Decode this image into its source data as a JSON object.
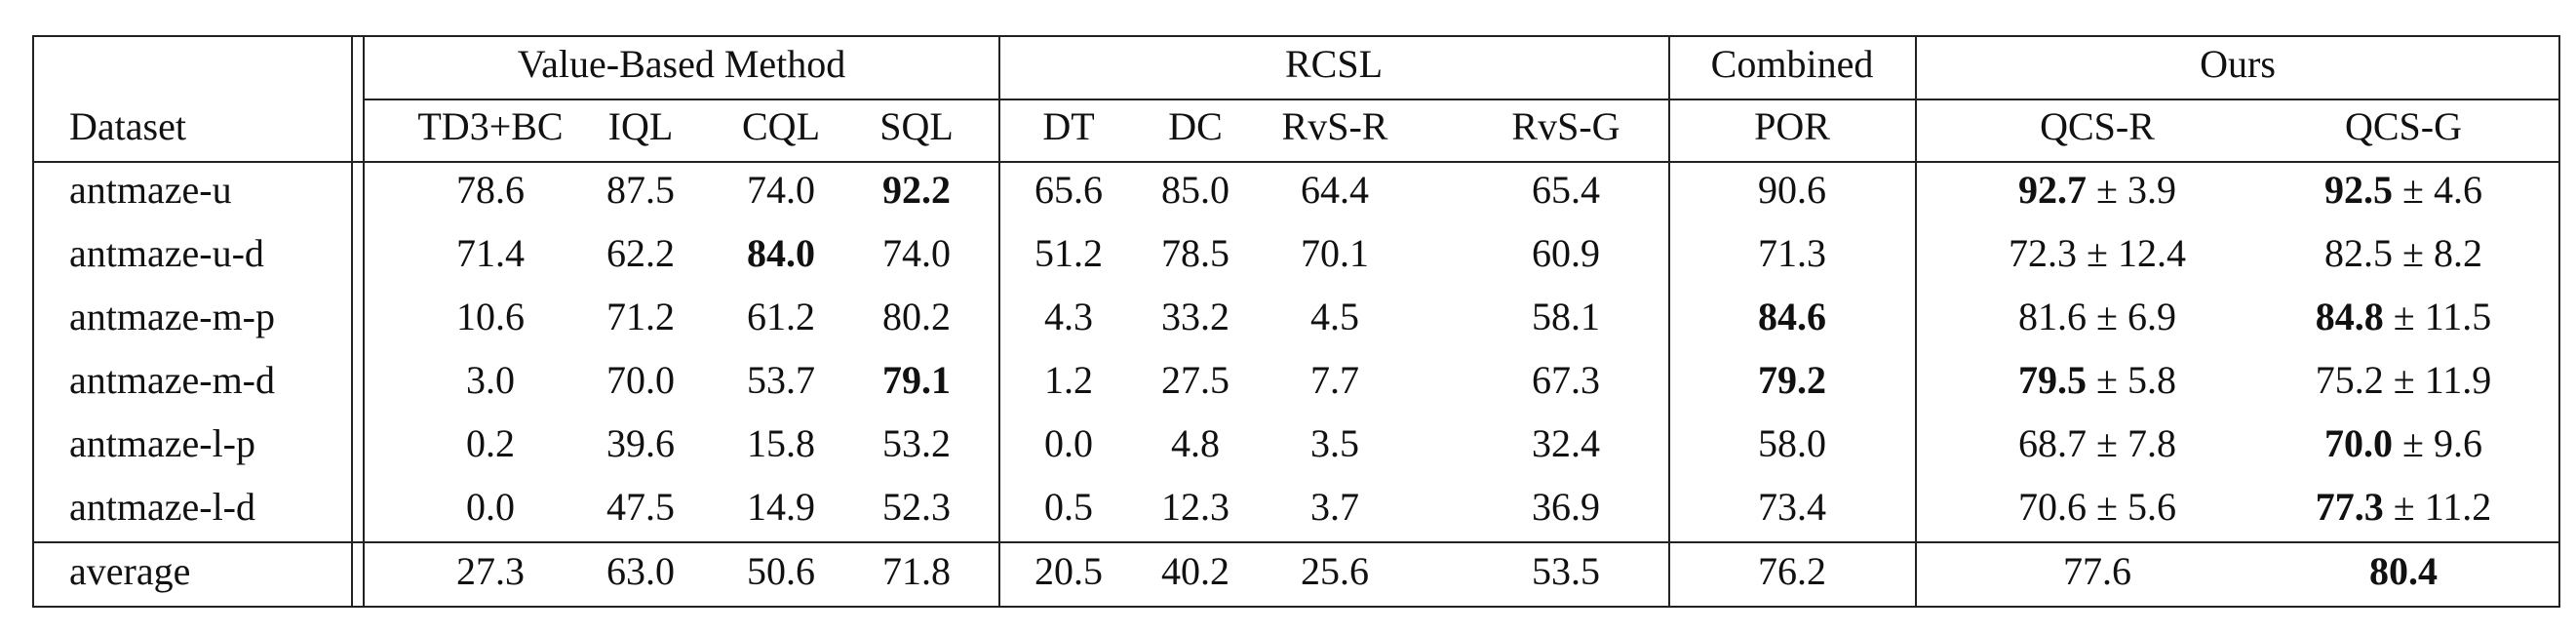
{
  "table": {
    "header": {
      "dataset": "Dataset",
      "groups": [
        "Value-Based Method",
        "RCSL",
        "Combined",
        "Ours"
      ],
      "columns": [
        "TD3+BC",
        "IQL",
        "CQL",
        "SQL",
        "DT",
        "DC",
        "RvS-R",
        "RvS-G",
        "POR",
        "QCS-R",
        "QCS-G"
      ]
    },
    "rows": [
      {
        "dataset": "antmaze-u",
        "cells": [
          "78.6",
          "87.5",
          "74.0",
          {
            "text": "92.2",
            "bold": true
          },
          "65.6",
          "85.0",
          "64.4",
          "65.4",
          "90.6",
          {
            "text": "92.7",
            "bold": true,
            "std": "± 3.9"
          },
          {
            "text": "92.5",
            "bold": true,
            "std": "± 4.6"
          }
        ]
      },
      {
        "dataset": "antmaze-u-d",
        "cells": [
          "71.4",
          "62.2",
          {
            "text": "84.0",
            "bold": true
          },
          "74.0",
          "51.2",
          "78.5",
          "70.1",
          "60.9",
          "71.3",
          {
            "text": "72.3",
            "std": "± 12.4"
          },
          {
            "text": "82.5",
            "std": "± 8.2"
          }
        ]
      },
      {
        "dataset": "antmaze-m-p",
        "cells": [
          "10.6",
          "71.2",
          "61.2",
          "80.2",
          "4.3",
          "33.2",
          "4.5",
          "58.1",
          {
            "text": "84.6",
            "bold": true
          },
          {
            "text": "81.6",
            "std": "± 6.9"
          },
          {
            "text": "84.8",
            "bold": true,
            "std": "± 11.5"
          }
        ]
      },
      {
        "dataset": "antmaze-m-d",
        "cells": [
          "3.0",
          "70.0",
          "53.7",
          {
            "text": "79.1",
            "bold": true
          },
          "1.2",
          "27.5",
          "7.7",
          "67.3",
          {
            "text": "79.2",
            "bold": true
          },
          {
            "text": "79.5",
            "bold": true,
            "std": "± 5.8"
          },
          {
            "text": "75.2",
            "std": "± 11.9"
          }
        ]
      },
      {
        "dataset": "antmaze-l-p",
        "cells": [
          "0.2",
          "39.6",
          "15.8",
          "53.2",
          "0.0",
          "4.8",
          "3.5",
          "32.4",
          "58.0",
          {
            "text": "68.7",
            "std": "± 7.8"
          },
          {
            "text": "70.0",
            "bold": true,
            "std": "± 9.6"
          }
        ]
      },
      {
        "dataset": "antmaze-l-d",
        "cells": [
          "0.0",
          "47.5",
          "14.9",
          "52.3",
          "0.5",
          "12.3",
          "3.7",
          "36.9",
          "73.4",
          {
            "text": "70.6",
            "std": "± 5.6"
          },
          {
            "text": "77.3",
            "bold": true,
            "std": "± 11.2"
          }
        ]
      },
      {
        "dataset": "average",
        "cells": [
          "27.3",
          "63.0",
          "50.6",
          "71.8",
          "20.5",
          "40.2",
          "25.6",
          "53.5",
          "76.2",
          "77.6",
          {
            "text": "80.4",
            "bold": true
          }
        ]
      }
    ]
  }
}
